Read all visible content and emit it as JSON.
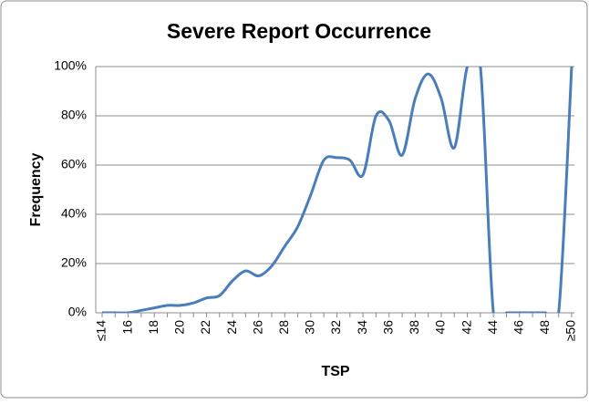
{
  "chart_data": {
    "type": "line",
    "title": "Severe Report Occurrence",
    "x_label": "TSP",
    "y_label": "Frequency",
    "categories": [
      "≤14",
      null,
      "16",
      null,
      "18",
      null,
      "20",
      null,
      "22",
      null,
      "24",
      null,
      "26",
      null,
      "28",
      null,
      "30",
      null,
      "32",
      null,
      "34",
      null,
      "36",
      null,
      "38",
      null,
      "40",
      null,
      "42",
      null,
      "44",
      null,
      "46",
      null,
      "48",
      null,
      "≥50"
    ],
    "series": [
      {
        "name": "Frequency",
        "color": "#4a7ebb",
        "values": [
          0,
          0,
          0,
          1,
          2,
          3,
          3,
          4,
          6,
          7,
          13,
          17,
          15,
          19,
          27,
          35,
          48,
          62,
          63,
          62,
          56,
          80,
          78,
          64,
          87,
          97,
          87,
          67,
          100,
          100,
          0,
          0,
          0,
          0,
          0,
          0,
          100
        ]
      }
    ],
    "ylim": [
      0,
      100
    ],
    "yticks": [
      {
        "value": 0,
        "label": "0%"
      },
      {
        "value": 20,
        "label": "20%"
      },
      {
        "value": 40,
        "label": "40%"
      },
      {
        "value": 60,
        "label": "60%"
      },
      {
        "value": 80,
        "label": "80%"
      },
      {
        "value": 100,
        "label": "100%"
      }
    ],
    "grid": true
  }
}
